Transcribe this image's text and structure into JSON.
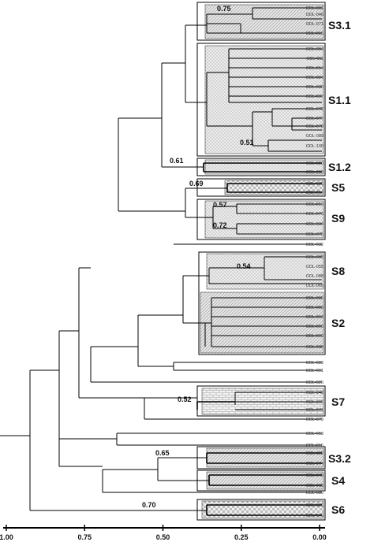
{
  "leaves": [
    "ODL-001",
    "ODL-046",
    "ODL-071",
    "ODL-015",
    "ODL-004",
    "ODL-011",
    "ODL-014",
    "ODL-024",
    "ODL-030",
    "ODL-037",
    "ODL-072",
    "ODL-077",
    "ODL-078",
    "ODL-089",
    "ODL-100",
    "ODL-020",
    "ODL-036",
    "ODL-035",
    "ODL-054",
    "ODL-019",
    "ODL-076",
    "ODL-034",
    "ODL-075",
    "ODL-032",
    "ODL-005",
    "ODL-055",
    "ODL-088",
    "ODL-065",
    "ODL-006",
    "ODL-009",
    "ODL-094",
    "ODL-096",
    "ODL-099",
    "ODL-038",
    "ODL-023",
    "ODL-061",
    "ODL-026",
    "ODL-043",
    "ODL-095",
    "ODL-071",
    "ODL-079",
    "ODL-013",
    "ODL-016",
    "ODL-022",
    "ODL-074",
    "ODL-045",
    "ODL-063",
    "ODL-086",
    "ODL-025",
    "ODL-040"
  ],
  "groups": [
    {
      "label": "S3.1"
    },
    {
      "label": "S1.1"
    },
    {
      "label": "S1.2"
    },
    {
      "label": "S5"
    },
    {
      "label": "S9"
    },
    {
      "label": "S8"
    },
    {
      "label": "S2"
    },
    {
      "label": "S7"
    },
    {
      "label": "S3.2"
    },
    {
      "label": "S4"
    },
    {
      "label": "S6"
    }
  ],
  "support_values": [
    "0.75",
    "0.51",
    "0.61",
    "0.69",
    "0.57",
    "0.72",
    "0.54",
    "0.52",
    "0.65",
    "0.70"
  ],
  "axis": {
    "ticks": [
      "1.00",
      "0.75",
      "0.50",
      "0.25",
      "0.00"
    ],
    "range": [
      1.0,
      0.0
    ]
  }
}
